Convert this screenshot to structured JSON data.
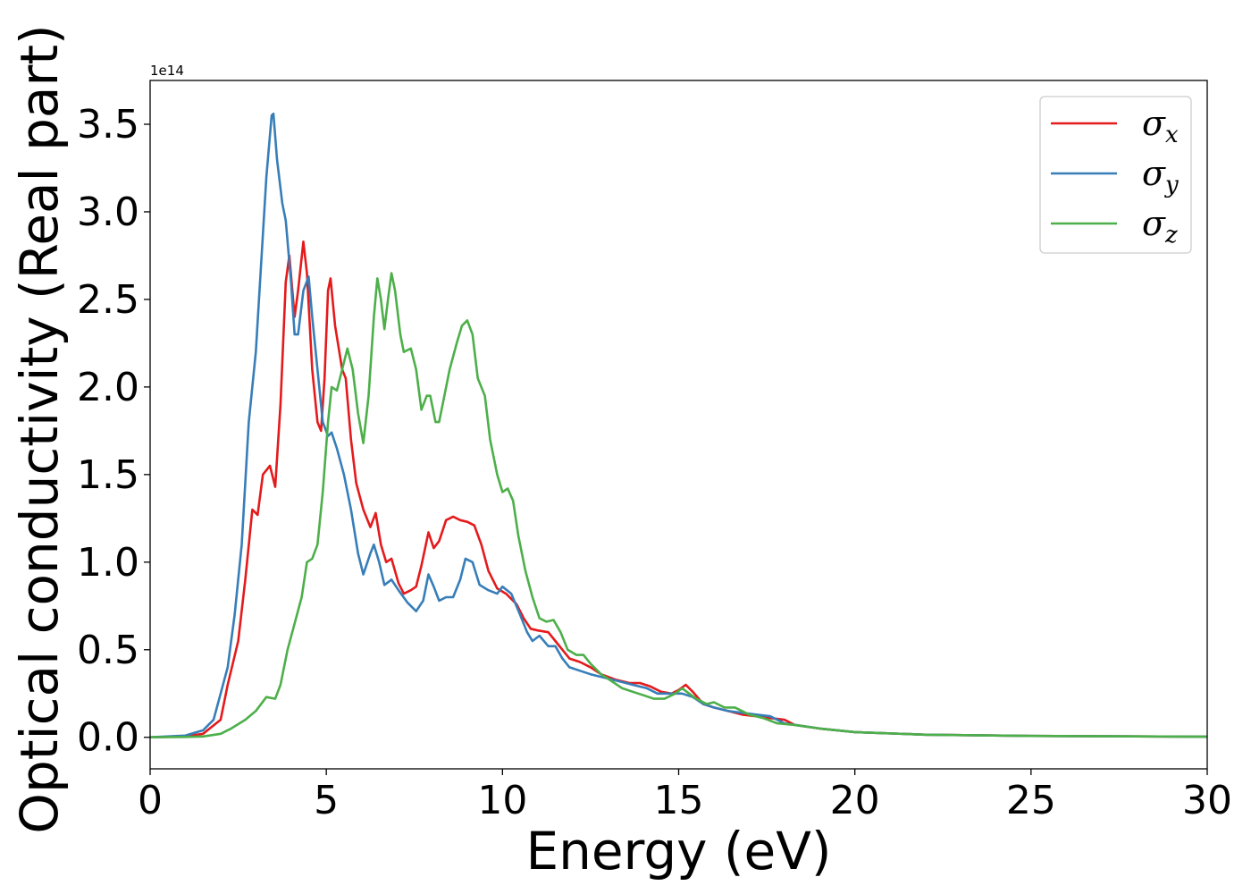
{
  "chart_data": {
    "type": "line",
    "xlabel": "Energy (eV)",
    "ylabel": "Optical conductivity (Real part)",
    "y_offset_text": "1e14",
    "xlim": [
      0,
      30
    ],
    "ylim": [
      -0.18,
      3.75
    ],
    "x_ticks": [
      0,
      5,
      10,
      15,
      20,
      25,
      30
    ],
    "x_tick_labels": [
      "0",
      "5",
      "10",
      "15",
      "20",
      "25",
      "30"
    ],
    "y_ticks": [
      0.0,
      0.5,
      1.0,
      1.5,
      2.0,
      2.5,
      3.0,
      3.5
    ],
    "y_tick_labels": [
      "0.0",
      "0.5",
      "1.0",
      "1.5",
      "2.0",
      "2.5",
      "3.0",
      "3.5"
    ],
    "grid": false,
    "legend_position": "top-right",
    "series": [
      {
        "name": "σx",
        "legend_base": "σ",
        "legend_sub": "x",
        "color": "#e41a1c",
        "points": [
          [
            0,
            0
          ],
          [
            1,
            0.005
          ],
          [
            1.5,
            0.02
          ],
          [
            2,
            0.1
          ],
          [
            2.2,
            0.3
          ],
          [
            2.5,
            0.55
          ],
          [
            2.7,
            0.9
          ],
          [
            2.9,
            1.3
          ],
          [
            3.05,
            1.27
          ],
          [
            3.2,
            1.5
          ],
          [
            3.4,
            1.55
          ],
          [
            3.55,
            1.43
          ],
          [
            3.7,
            1.9
          ],
          [
            3.85,
            2.6
          ],
          [
            3.95,
            2.75
          ],
          [
            4.1,
            2.4
          ],
          [
            4.2,
            2.55
          ],
          [
            4.35,
            2.83
          ],
          [
            4.45,
            2.65
          ],
          [
            4.6,
            2.1
          ],
          [
            4.75,
            1.8
          ],
          [
            4.85,
            1.75
          ],
          [
            4.95,
            2.05
          ],
          [
            5.05,
            2.55
          ],
          [
            5.12,
            2.62
          ],
          [
            5.25,
            2.35
          ],
          [
            5.45,
            2.1
          ],
          [
            5.55,
            2.05
          ],
          [
            5.7,
            1.7
          ],
          [
            5.85,
            1.45
          ],
          [
            6.05,
            1.3
          ],
          [
            6.25,
            1.2
          ],
          [
            6.4,
            1.28
          ],
          [
            6.55,
            1.1
          ],
          [
            6.7,
            1.0
          ],
          [
            6.85,
            1.02
          ],
          [
            7.05,
            0.88
          ],
          [
            7.2,
            0.82
          ],
          [
            7.4,
            0.84
          ],
          [
            7.55,
            0.86
          ],
          [
            7.7,
            0.98
          ],
          [
            7.9,
            1.17
          ],
          [
            8.05,
            1.08
          ],
          [
            8.2,
            1.12
          ],
          [
            8.4,
            1.24
          ],
          [
            8.6,
            1.26
          ],
          [
            8.8,
            1.24
          ],
          [
            9.0,
            1.23
          ],
          [
            9.2,
            1.21
          ],
          [
            9.4,
            1.1
          ],
          [
            9.6,
            0.95
          ],
          [
            9.85,
            0.85
          ],
          [
            10.1,
            0.82
          ],
          [
            10.4,
            0.76
          ],
          [
            10.6,
            0.68
          ],
          [
            10.8,
            0.62
          ],
          [
            11.0,
            0.61
          ],
          [
            11.3,
            0.6
          ],
          [
            11.5,
            0.55
          ],
          [
            11.7,
            0.5
          ],
          [
            11.9,
            0.45
          ],
          [
            12.2,
            0.43
          ],
          [
            12.5,
            0.4
          ],
          [
            12.8,
            0.36
          ],
          [
            13.2,
            0.33
          ],
          [
            13.6,
            0.31
          ],
          [
            13.9,
            0.31
          ],
          [
            14.2,
            0.29
          ],
          [
            14.5,
            0.26
          ],
          [
            14.8,
            0.25
          ],
          [
            15.0,
            0.27
          ],
          [
            15.2,
            0.3
          ],
          [
            15.4,
            0.26
          ],
          [
            15.7,
            0.19
          ],
          [
            16.0,
            0.17
          ],
          [
            16.4,
            0.15
          ],
          [
            16.8,
            0.13
          ],
          [
            17.2,
            0.12
          ],
          [
            17.6,
            0.11
          ],
          [
            18.0,
            0.1
          ],
          [
            18.3,
            0.07
          ],
          [
            19,
            0.05
          ],
          [
            20,
            0.03
          ],
          [
            22,
            0.015
          ],
          [
            25,
            0.008
          ],
          [
            30,
            0.003
          ]
        ]
      },
      {
        "name": "σy",
        "legend_base": "σ",
        "legend_sub": "y",
        "color": "#377eb8",
        "points": [
          [
            0,
            0
          ],
          [
            1,
            0.01
          ],
          [
            1.5,
            0.04
          ],
          [
            1.8,
            0.1
          ],
          [
            2.0,
            0.25
          ],
          [
            2.2,
            0.4
          ],
          [
            2.4,
            0.7
          ],
          [
            2.6,
            1.1
          ],
          [
            2.8,
            1.8
          ],
          [
            3.0,
            2.2
          ],
          [
            3.15,
            2.7
          ],
          [
            3.3,
            3.2
          ],
          [
            3.45,
            3.55
          ],
          [
            3.5,
            3.56
          ],
          [
            3.6,
            3.3
          ],
          [
            3.75,
            3.05
          ],
          [
            3.85,
            2.95
          ],
          [
            4.0,
            2.6
          ],
          [
            4.1,
            2.3
          ],
          [
            4.2,
            2.3
          ],
          [
            4.35,
            2.55
          ],
          [
            4.5,
            2.63
          ],
          [
            4.6,
            2.4
          ],
          [
            4.75,
            2.1
          ],
          [
            4.9,
            1.8
          ],
          [
            5.05,
            1.72
          ],
          [
            5.15,
            1.74
          ],
          [
            5.3,
            1.65
          ],
          [
            5.5,
            1.5
          ],
          [
            5.7,
            1.3
          ],
          [
            5.9,
            1.05
          ],
          [
            6.05,
            0.93
          ],
          [
            6.25,
            1.05
          ],
          [
            6.35,
            1.1
          ],
          [
            6.5,
            1.0
          ],
          [
            6.65,
            0.87
          ],
          [
            6.85,
            0.9
          ],
          [
            7.05,
            0.84
          ],
          [
            7.3,
            0.77
          ],
          [
            7.55,
            0.72
          ],
          [
            7.75,
            0.78
          ],
          [
            7.9,
            0.93
          ],
          [
            8.05,
            0.86
          ],
          [
            8.2,
            0.78
          ],
          [
            8.4,
            0.8
          ],
          [
            8.6,
            0.8
          ],
          [
            8.8,
            0.9
          ],
          [
            8.95,
            1.02
          ],
          [
            9.15,
            1.0
          ],
          [
            9.35,
            0.87
          ],
          [
            9.6,
            0.84
          ],
          [
            9.85,
            0.82
          ],
          [
            10.0,
            0.86
          ],
          [
            10.25,
            0.82
          ],
          [
            10.5,
            0.7
          ],
          [
            10.7,
            0.6
          ],
          [
            10.85,
            0.55
          ],
          [
            11.05,
            0.58
          ],
          [
            11.3,
            0.52
          ],
          [
            11.5,
            0.52
          ],
          [
            11.7,
            0.45
          ],
          [
            11.9,
            0.4
          ],
          [
            12.2,
            0.38
          ],
          [
            12.5,
            0.36
          ],
          [
            12.9,
            0.34
          ],
          [
            13.3,
            0.32
          ],
          [
            13.7,
            0.3
          ],
          [
            14.1,
            0.28
          ],
          [
            14.4,
            0.25
          ],
          [
            14.8,
            0.25
          ],
          [
            15.1,
            0.25
          ],
          [
            15.4,
            0.23
          ],
          [
            15.7,
            0.19
          ],
          [
            16.0,
            0.17
          ],
          [
            16.4,
            0.15
          ],
          [
            16.8,
            0.14
          ],
          [
            17.2,
            0.13
          ],
          [
            17.6,
            0.12
          ],
          [
            18.0,
            0.08
          ],
          [
            19,
            0.05
          ],
          [
            20,
            0.03
          ],
          [
            22,
            0.015
          ],
          [
            25,
            0.008
          ],
          [
            30,
            0.003
          ]
        ]
      },
      {
        "name": "σz",
        "legend_base": "σ",
        "legend_sub": "z",
        "color": "#4daf4a",
        "points": [
          [
            0,
            0
          ],
          [
            1,
            0.002
          ],
          [
            1.5,
            0.005
          ],
          [
            2,
            0.02
          ],
          [
            2.3,
            0.05
          ],
          [
            2.7,
            0.1
          ],
          [
            3.0,
            0.15
          ],
          [
            3.3,
            0.23
          ],
          [
            3.55,
            0.22
          ],
          [
            3.7,
            0.3
          ],
          [
            3.9,
            0.5
          ],
          [
            4.1,
            0.65
          ],
          [
            4.3,
            0.8
          ],
          [
            4.45,
            1.0
          ],
          [
            4.6,
            1.02
          ],
          [
            4.75,
            1.1
          ],
          [
            4.9,
            1.4
          ],
          [
            5.05,
            1.8
          ],
          [
            5.15,
            2.0
          ],
          [
            5.3,
            1.98
          ],
          [
            5.45,
            2.1
          ],
          [
            5.6,
            2.22
          ],
          [
            5.75,
            2.1
          ],
          [
            5.9,
            1.85
          ],
          [
            6.05,
            1.68
          ],
          [
            6.2,
            1.95
          ],
          [
            6.35,
            2.4
          ],
          [
            6.45,
            2.62
          ],
          [
            6.55,
            2.5
          ],
          [
            6.65,
            2.33
          ],
          [
            6.75,
            2.5
          ],
          [
            6.85,
            2.65
          ],
          [
            6.95,
            2.55
          ],
          [
            7.1,
            2.3
          ],
          [
            7.2,
            2.2
          ],
          [
            7.4,
            2.22
          ],
          [
            7.55,
            2.1
          ],
          [
            7.7,
            1.87
          ],
          [
            7.85,
            1.95
          ],
          [
            7.95,
            1.95
          ],
          [
            8.1,
            1.8
          ],
          [
            8.2,
            1.8
          ],
          [
            8.35,
            1.95
          ],
          [
            8.5,
            2.1
          ],
          [
            8.7,
            2.25
          ],
          [
            8.85,
            2.35
          ],
          [
            9.0,
            2.38
          ],
          [
            9.15,
            2.3
          ],
          [
            9.3,
            2.05
          ],
          [
            9.5,
            1.95
          ],
          [
            9.65,
            1.7
          ],
          [
            9.85,
            1.5
          ],
          [
            10.0,
            1.4
          ],
          [
            10.15,
            1.42
          ],
          [
            10.3,
            1.35
          ],
          [
            10.45,
            1.15
          ],
          [
            10.65,
            0.95
          ],
          [
            10.85,
            0.8
          ],
          [
            11.05,
            0.68
          ],
          [
            11.25,
            0.66
          ],
          [
            11.45,
            0.67
          ],
          [
            11.65,
            0.6
          ],
          [
            11.85,
            0.5
          ],
          [
            12.1,
            0.47
          ],
          [
            12.3,
            0.47
          ],
          [
            12.5,
            0.42
          ],
          [
            12.8,
            0.36
          ],
          [
            13.1,
            0.32
          ],
          [
            13.4,
            0.28
          ],
          [
            13.7,
            0.26
          ],
          [
            14.0,
            0.24
          ],
          [
            14.3,
            0.22
          ],
          [
            14.6,
            0.22
          ],
          [
            14.9,
            0.25
          ],
          [
            15.1,
            0.28
          ],
          [
            15.3,
            0.25
          ],
          [
            15.5,
            0.22
          ],
          [
            15.8,
            0.19
          ],
          [
            16.0,
            0.2
          ],
          [
            16.3,
            0.17
          ],
          [
            16.6,
            0.17
          ],
          [
            17.0,
            0.13
          ],
          [
            17.4,
            0.11
          ],
          [
            17.8,
            0.08
          ],
          [
            18.3,
            0.07
          ],
          [
            19,
            0.05
          ],
          [
            20,
            0.03
          ],
          [
            22,
            0.015
          ],
          [
            25,
            0.008
          ],
          [
            30,
            0.003
          ]
        ]
      }
    ]
  }
}
